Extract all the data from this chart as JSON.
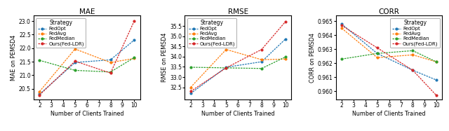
{
  "x": [
    2,
    5,
    8,
    10
  ],
  "mae": {
    "FedOpt": [
      20.3,
      21.47,
      21.57,
      22.3
    ],
    "FedAvg": [
      20.4,
      21.97,
      21.47,
      21.62
    ],
    "FedMedian": [
      21.55,
      21.18,
      21.12,
      21.65
    ],
    "Ours(Fed-LDR)": [
      20.27,
      21.52,
      21.08,
      23.0
    ]
  },
  "mae_ylabel": "MAE on PEMSD4",
  "mae_title": "MAE",
  "mae_ylim": [
    20.1,
    23.2
  ],
  "mae_yticks": [
    20.5,
    21.0,
    21.5,
    22.0,
    22.5,
    23.0
  ],
  "rmse": {
    "FedOpt": [
      32.2,
      33.48,
      33.75,
      34.85
    ],
    "FedAvg": [
      32.5,
      34.35,
      33.85,
      33.88
    ],
    "FedMedian": [
      33.48,
      33.45,
      33.42,
      33.98
    ],
    "Ours(Fed-LDR)": [
      32.3,
      33.45,
      34.35,
      35.7
    ]
  },
  "rmse_ylabel": "RMSE on PEMSD4",
  "rmse_title": "RMSE",
  "rmse_ylim": [
    31.9,
    36.0
  ],
  "rmse_yticks": [
    32.5,
    33.0,
    33.5,
    34.0,
    34.5,
    35.0,
    35.5
  ],
  "corr": {
    "FedOpt": [
      0.9648,
      0.9627,
      0.9615,
      0.9608
    ],
    "FedAvg": [
      0.9645,
      0.9624,
      0.9626,
      0.9621
    ],
    "FedMedian": [
      0.9623,
      0.9627,
      0.9629,
      0.9621
    ],
    "Ours(Fed-LDR)": [
      0.9647,
      0.9631,
      0.9615,
      0.9597
    ]
  },
  "corr_ylabel": "CORR on PEMSD4",
  "corr_title": "CORR",
  "corr_ylim": [
    0.9594,
    0.9654
  ],
  "corr_yticks": [
    0.96,
    0.961,
    0.962,
    0.963,
    0.964,
    0.965
  ],
  "colors": {
    "FedOpt": "#1f77b4",
    "FedAvg": "#ff7f0e",
    "FedMedian": "#2ca02c",
    "Ours(Fed-LDR)": "#d62728"
  },
  "xlabel": "Number of Clients Trained",
  "legend_title": "Strategy"
}
